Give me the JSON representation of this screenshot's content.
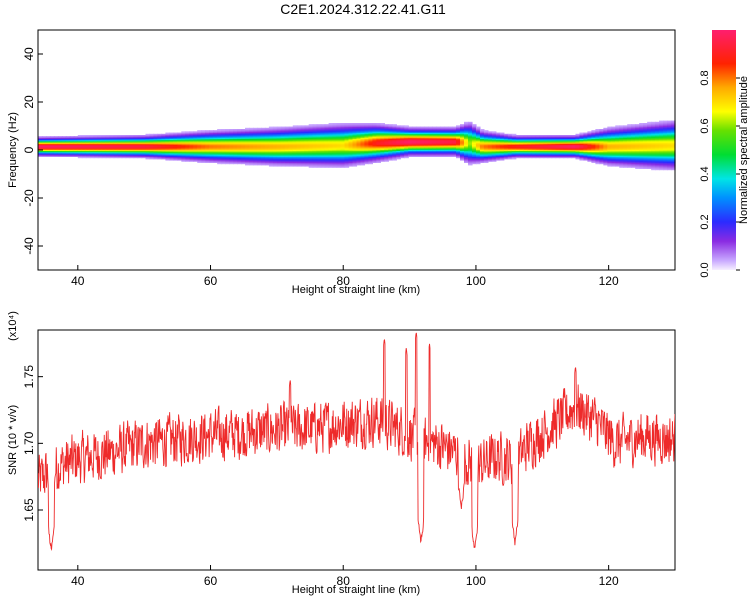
{
  "title": "C2E1.2024.312.22.41.G11",
  "chart_data": [
    {
      "type": "heatmap",
      "xlabel": "Height of straight line (km)",
      "ylabel": "Frequency (Hz)",
      "xlim": [
        34,
        130
      ],
      "ylim": [
        -50,
        50
      ],
      "xticks": [
        40,
        60,
        80,
        100,
        120
      ],
      "yticks": [
        40,
        20,
        0,
        -20,
        -40
      ],
      "ridge": [
        {
          "x": 34,
          "freq": 1.5,
          "width": 3,
          "amp": 1.0
        },
        {
          "x": 50,
          "freq": 1.5,
          "width": 3.5,
          "amp": 0.95
        },
        {
          "x": 60,
          "freq": 1.5,
          "width": 5,
          "amp": 0.8
        },
        {
          "x": 70,
          "freq": 1.5,
          "width": 6,
          "amp": 0.75
        },
        {
          "x": 80,
          "freq": 2,
          "width": 7,
          "amp": 0.7
        },
        {
          "x": 85,
          "freq": 3,
          "width": 6,
          "amp": 0.9
        },
        {
          "x": 90,
          "freq": 3.5,
          "width": 4.5,
          "amp": 1.0
        },
        {
          "x": 97,
          "freq": 3.5,
          "width": 4.5,
          "amp": 0.95
        },
        {
          "x": 99,
          "freq": 3,
          "width": 7,
          "amp": 0.6
        },
        {
          "x": 101,
          "freq": 1.5,
          "width": 5,
          "amp": 0.8
        },
        {
          "x": 106,
          "freq": 1.5,
          "width": 3.5,
          "amp": 0.9
        },
        {
          "x": 115,
          "freq": 1.5,
          "width": 3.5,
          "amp": 1.0
        },
        {
          "x": 120,
          "freq": 1.5,
          "width": 6,
          "amp": 0.75
        },
        {
          "x": 130,
          "freq": 2,
          "width": 8,
          "amp": 0.7
        }
      ],
      "colorbar": {
        "label": "Normalized spectral amplitude",
        "ticks": [
          "0.0",
          "0.2",
          "0.4",
          "0.6",
          "0.8"
        ],
        "range": [
          0,
          1
        ]
      }
    },
    {
      "type": "line",
      "xlabel": "Height of straight line (km)",
      "ylabel": "SNR (10 * v/v)",
      "multiplier": "(x10⁴)",
      "xlim": [
        34,
        130
      ],
      "ylim": [
        1.605,
        1.785
      ],
      "xticks": [
        40,
        60,
        80,
        100,
        120
      ],
      "yticks": [
        "1.65",
        "1.70",
        "1.75"
      ],
      "color": "#ee2a2a",
      "trend": [
        {
          "x": 34,
          "y": 1.672
        },
        {
          "x": 37,
          "y": 1.683
        },
        {
          "x": 40,
          "y": 1.688
        },
        {
          "x": 45,
          "y": 1.693
        },
        {
          "x": 50,
          "y": 1.7
        },
        {
          "x": 55,
          "y": 1.703
        },
        {
          "x": 60,
          "y": 1.706
        },
        {
          "x": 65,
          "y": 1.708
        },
        {
          "x": 70,
          "y": 1.71
        },
        {
          "x": 75,
          "y": 1.711
        },
        {
          "x": 80,
          "y": 1.715
        },
        {
          "x": 85,
          "y": 1.718
        },
        {
          "x": 88,
          "y": 1.712
        },
        {
          "x": 90,
          "y": 1.707
        },
        {
          "x": 92,
          "y": 1.702
        },
        {
          "x": 95,
          "y": 1.698
        },
        {
          "x": 98,
          "y": 1.69
        },
        {
          "x": 100,
          "y": 1.682
        },
        {
          "x": 103,
          "y": 1.69
        },
        {
          "x": 106,
          "y": 1.687
        },
        {
          "x": 108,
          "y": 1.7
        },
        {
          "x": 112,
          "y": 1.715
        },
        {
          "x": 115,
          "y": 1.728
        },
        {
          "x": 118,
          "y": 1.717
        },
        {
          "x": 121,
          "y": 1.7
        },
        {
          "x": 125,
          "y": 1.705
        },
        {
          "x": 130,
          "y": 1.703
        }
      ],
      "dips": [
        {
          "x": 36,
          "y": 1.616
        },
        {
          "x": 91.7,
          "y": 1.622
        },
        {
          "x": 99.8,
          "y": 1.617
        },
        {
          "x": 105.9,
          "y": 1.622
        },
        {
          "x": 97.8,
          "y": 1.648
        }
      ],
      "peaks": [
        {
          "x": 86.2,
          "y": 1.779
        },
        {
          "x": 91.0,
          "y": 1.784
        },
        {
          "x": 93.0,
          "y": 1.775
        },
        {
          "x": 89.5,
          "y": 1.772
        },
        {
          "x": 115.0,
          "y": 1.758
        },
        {
          "x": 72.0,
          "y": 1.748
        }
      ],
      "noise_amplitude": 0.018
    }
  ]
}
